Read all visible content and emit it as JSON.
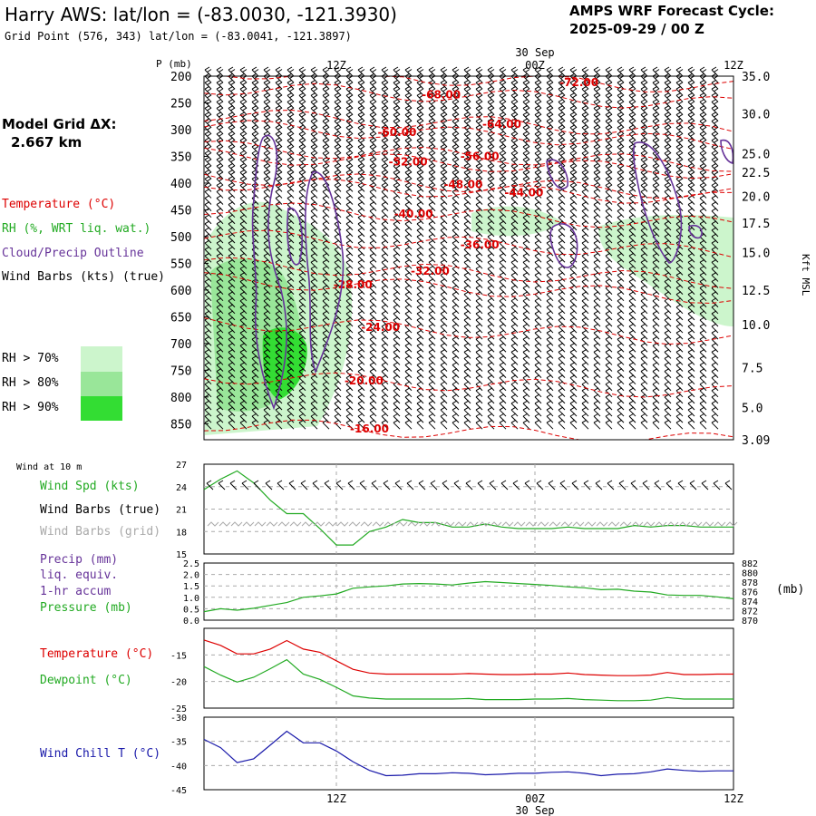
{
  "header": {
    "title": "Harry AWS:  lat/lon = (-83.0030, -121.3930)",
    "subtitle": "Grid Point (576, 343) lat/lon = (-83.0041, -121.3897)",
    "cycle_line1": "AMPS WRF Forecast Cycle:",
    "cycle_line2": "2025-09-29 / 00  Z",
    "grid_label": "Model Grid ",
    "grid_delta": "ΔX:",
    "grid_value": "2.667 km"
  },
  "colors": {
    "temperature": "#dd0000",
    "rh": "#22aa22",
    "cloud": "#663399",
    "rh70": "#ccf5cc",
    "rh80": "#99e699",
    "rh90": "#33dd33",
    "windchill": "#1a1aaa",
    "barb_grid": "#aaaaaa"
  },
  "legend": {
    "temperature": "Temperature (°C)",
    "rh": "RH (%, WRT liq. wat.)",
    "cloud": "Cloud/Precip Outline",
    "barbs": "Wind Barbs (kts) (true)",
    "rh70": "RH > 70%",
    "rh80": "RH > 80%",
    "rh90": "RH > 90%"
  },
  "time_axis": {
    "top_date": "30 Sep",
    "bottom_date": "30 Sep",
    "ticks": [
      "12Z",
      "00Z",
      "12Z"
    ]
  },
  "panels": {
    "wind": {
      "title": "Wind at 10 m",
      "label_spd": "Wind Spd (kts)",
      "label_barb_true": "Wind Barbs (true)",
      "label_barb_grid": "Wind Barbs (grid)"
    },
    "precip": {
      "label1": "Precip (mm)",
      "label2": "liq. equiv.",
      "label3": "1-hr accum",
      "label4": "Pressure (mb)",
      "right_unit": "(mb)"
    },
    "temp": {
      "label_t": "Temperature (°C)",
      "label_td": "Dewpoint (°C)"
    },
    "chill": {
      "label": "Wind Chill T (°C)"
    }
  },
  "chart_data": [
    {
      "type": "heatmap",
      "name_printed": "",
      "x_hours": [
        0,
        48
      ],
      "x_ticks_hours": [
        12,
        30,
        48
      ],
      "x_tick_labels": [
        "12Z",
        "00Z",
        "12Z"
      ],
      "y_label": "P (mb)",
      "y_ticks": [
        200,
        250,
        300,
        350,
        400,
        450,
        500,
        550,
        600,
        650,
        700,
        750,
        800,
        850
      ],
      "y_range_mb": [
        200,
        880
      ],
      "right_axis_label": "Kft MSL",
      "right_ticks": [
        {
          "mb": 200,
          "label": "35.0"
        },
        {
          "mb": 270,
          "label": "30.0"
        },
        {
          "mb": 345,
          "label": "25.0"
        },
        {
          "mb": 380,
          "label": "22.5"
        },
        {
          "mb": 425,
          "label": "20.0"
        },
        {
          "mb": 475,
          "label": "17.5"
        },
        {
          "mb": 530,
          "label": "15.0"
        },
        {
          "mb": 600,
          "label": "12.5"
        },
        {
          "mb": 665,
          "label": "10.0"
        },
        {
          "mb": 745,
          "label": "7.5"
        },
        {
          "mb": 820,
          "label": "5.0"
        },
        {
          "mb": 880,
          "label": "3.09"
        }
      ],
      "temperature_contours": [
        {
          "label": "-72.00",
          "at": [
            34,
            212
          ]
        },
        {
          "label": "-68.00",
          "at": [
            21.5,
            235
          ]
        },
        {
          "label": "-64.00",
          "at": [
            27,
            290
          ]
        },
        {
          "label": "-60.00",
          "at": [
            17.5,
            305
          ]
        },
        {
          "label": "-56.00",
          "at": [
            25,
            350
          ]
        },
        {
          "label": "-52.00",
          "at": [
            18.5,
            360
          ]
        },
        {
          "label": "-48.00",
          "at": [
            23.5,
            403
          ]
        },
        {
          "label": "-44.00",
          "at": [
            29,
            418
          ]
        },
        {
          "label": "-40.00",
          "at": [
            19,
            458
          ]
        },
        {
          "label": "-36.00",
          "at": [
            25,
            515
          ]
        },
        {
          "label": "-32.00",
          "at": [
            20.5,
            565
          ]
        },
        {
          "label": "-28.00",
          "at": [
            13.5,
            590
          ]
        },
        {
          "label": "-24.00",
          "at": [
            16,
            670
          ]
        },
        {
          "label": "-20.00",
          "at": [
            14.5,
            770
          ]
        },
        {
          "label": "-16.00",
          "at": [
            15,
            860
          ]
        }
      ]
    },
    {
      "type": "line",
      "name_printed": "Wind Spd (kts)",
      "x_range_hours": [
        0,
        48
      ],
      "ylim": [
        15,
        27
      ],
      "y_ticks": [
        15,
        18,
        21,
        24,
        27
      ],
      "series": [
        {
          "name": "Wind Spd (kts)",
          "x": [
            0,
            1.5,
            3,
            4.5,
            6,
            7.5,
            9,
            10.5,
            12,
            13.5,
            15,
            16.5,
            18,
            19.5,
            21,
            22.5,
            24,
            25.5,
            27,
            28.5,
            30,
            31.5,
            33,
            34.5,
            36,
            37.5,
            39,
            40.5,
            42,
            43.5,
            45,
            46.5,
            48
          ],
          "values": [
            23.6,
            25,
            26.1,
            24.5,
            22.2,
            20.4,
            20.4,
            18.4,
            16.2,
            16.2,
            18,
            18.6,
            19.6,
            19.2,
            19.2,
            18.6,
            18.6,
            19,
            18.6,
            18.4,
            18.4,
            18.4,
            18.6,
            18.4,
            18.4,
            18.4,
            18.8,
            18.6,
            18.8,
            18.8,
            18.6,
            18.6,
            18.6
          ]
        }
      ]
    },
    {
      "type": "line",
      "name_printed": "Pressure (mb)",
      "x_range_hours": [
        0,
        48
      ],
      "ylim": [
        0,
        2.5
      ],
      "y_ticks": [
        0.0,
        0.5,
        1.0,
        1.5,
        2.0,
        2.5
      ],
      "y_ticks_right": [
        870,
        872,
        874,
        876,
        878,
        880,
        882
      ],
      "series": [
        {
          "name": "Pressure (mb)",
          "x": [
            0,
            1.5,
            3,
            4.5,
            6,
            7.5,
            9,
            10.5,
            12,
            13.5,
            15,
            16.5,
            18,
            19.5,
            21,
            22.5,
            24,
            25.5,
            27,
            28.5,
            30,
            31.5,
            33,
            34.5,
            36,
            37.5,
            39,
            40.5,
            42,
            43.5,
            45,
            46.5,
            48
          ],
          "values": [
            871.8,
            872.4,
            872.1,
            872.5,
            873.1,
            873.7,
            874.8,
            875.1,
            875.5,
            876.7,
            877.0,
            877.2,
            877.6,
            877.7,
            877.6,
            877.4,
            877.8,
            878.1,
            877.9,
            877.7,
            877.5,
            877.3,
            877.0,
            876.8,
            876.4,
            876.5,
            876.1,
            875.9,
            875.3,
            875.2,
            875.2,
            874.9,
            874.5
          ]
        }
      ]
    },
    {
      "type": "line",
      "name_printed": "Temperature (°C) / Dewpoint (°C)",
      "x_range_hours": [
        0,
        48
      ],
      "ylim": [
        -25,
        -10
      ],
      "y_ticks": [
        -15,
        -20,
        -25
      ],
      "series": [
        {
          "name": "Temperature (°C)",
          "x": [
            0,
            1.5,
            3,
            4.5,
            6,
            7.5,
            9,
            10.5,
            12,
            13.5,
            15,
            16.5,
            18,
            19.5,
            21,
            22.5,
            24,
            25.5,
            27,
            28.5,
            30,
            31.5,
            33,
            34.5,
            36,
            37.5,
            39,
            40.5,
            42,
            43.5,
            45,
            46.5,
            48
          ],
          "values": [
            -12.2,
            -13.2,
            -14.8,
            -14.8,
            -13.9,
            -12.3,
            -13.9,
            -14.5,
            -16.1,
            -17.7,
            -18.4,
            -18.6,
            -18.6,
            -18.6,
            -18.6,
            -18.6,
            -18.5,
            -18.6,
            -18.7,
            -18.7,
            -18.6,
            -18.6,
            -18.4,
            -18.7,
            -18.8,
            -18.9,
            -18.9,
            -18.8,
            -18.3,
            -18.7,
            -18.7,
            -18.6,
            -18.6
          ]
        },
        {
          "name": "Dewpoint (°C)",
          "x": [
            0,
            1.5,
            3,
            4.5,
            6,
            7.5,
            9,
            10.5,
            12,
            13.5,
            15,
            16.5,
            18,
            19.5,
            21,
            22.5,
            24,
            25.5,
            27,
            28.5,
            30,
            31.5,
            33,
            34.5,
            36,
            37.5,
            39,
            40.5,
            42,
            43.5,
            45,
            46.5,
            48
          ],
          "values": [
            -17.2,
            -18.8,
            -20.1,
            -19.2,
            -17.6,
            -15.9,
            -18.6,
            -19.6,
            -21.1,
            -22.7,
            -23.1,
            -23.3,
            -23.3,
            -23.3,
            -23.3,
            -23.3,
            -23.2,
            -23.4,
            -23.4,
            -23.4,
            -23.3,
            -23.3,
            -23.2,
            -23.4,
            -23.5,
            -23.6,
            -23.6,
            -23.5,
            -23.0,
            -23.3,
            -23.3,
            -23.3,
            -23.3
          ]
        }
      ]
    },
    {
      "type": "line",
      "name_printed": "Wind Chill T (°C)",
      "x_range_hours": [
        0,
        48
      ],
      "ylim": [
        -45,
        -30
      ],
      "y_ticks": [
        -30,
        -35,
        -40,
        -45
      ],
      "series": [
        {
          "name": "Wind Chill T (°C)",
          "x": [
            0,
            1.5,
            3,
            4.5,
            6,
            7.5,
            9,
            10.5,
            12,
            13.5,
            15,
            16.5,
            18,
            19.5,
            21,
            22.5,
            24,
            25.5,
            27,
            28.5,
            30,
            31.5,
            33,
            34.5,
            36,
            37.5,
            39,
            40.5,
            42,
            43.5,
            45,
            46.5,
            48
          ],
          "values": [
            -34.6,
            -36.3,
            -39.4,
            -38.6,
            -35.8,
            -32.9,
            -35.3,
            -35.3,
            -37.0,
            -39.2,
            -41.0,
            -42.1,
            -42.0,
            -41.7,
            -41.7,
            -41.5,
            -41.6,
            -41.9,
            -41.8,
            -41.6,
            -41.6,
            -41.4,
            -41.3,
            -41.6,
            -42.1,
            -41.8,
            -41.7,
            -41.3,
            -40.7,
            -41.0,
            -41.2,
            -41.1,
            -41.1
          ]
        }
      ]
    }
  ]
}
